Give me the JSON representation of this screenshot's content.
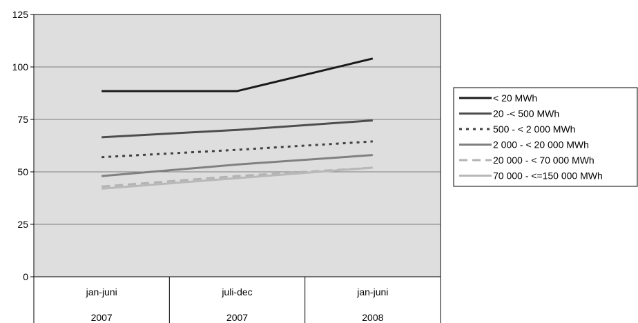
{
  "chart_data": {
    "type": "line",
    "categories": [
      {
        "label": "jan-juni",
        "year": "2007"
      },
      {
        "label": "juli-dec",
        "year": "2007"
      },
      {
        "label": "jan-juni",
        "year": "2008"
      }
    ],
    "ylim": [
      0,
      125
    ],
    "yticks": [
      "0",
      "25",
      "50",
      "75",
      "100",
      "125"
    ],
    "grid": true,
    "legend_position": "right",
    "series": [
      {
        "name": "< 20 MWh",
        "values": [
          88.5,
          88.5,
          104.0
        ],
        "color": "#1a1a1a",
        "dash": "solid"
      },
      {
        "name": "20 -< 500 MWh",
        "values": [
          66.5,
          70.0,
          74.5
        ],
        "color": "#4d4d4d",
        "dash": "solid"
      },
      {
        "name": "500 - < 2 000 MWh",
        "values": [
          57.0,
          60.5,
          64.5
        ],
        "color": "#404040",
        "dash": "dotted"
      },
      {
        "name": "2 000 - < 20 000 MWh",
        "values": [
          48.0,
          53.5,
          58.0
        ],
        "color": "#808080",
        "dash": "solid"
      },
      {
        "name": "20 000 - < 70 000 MWh",
        "values": [
          43.0,
          48.0,
          52.0
        ],
        "color": "#b3b3b3",
        "dash": "dashed"
      },
      {
        "name": "70 000 - <=150 000 MWh",
        "values": [
          42.0,
          47.0,
          52.0
        ],
        "color": "#b8b8b8",
        "dash": "solid"
      }
    ]
  }
}
